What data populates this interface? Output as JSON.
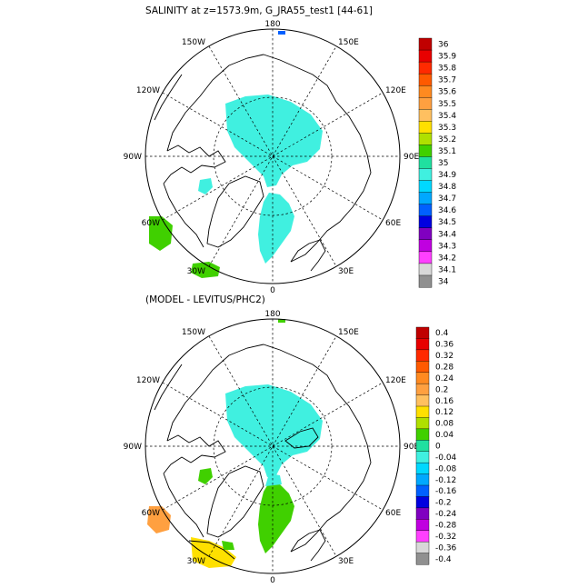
{
  "panels": [
    {
      "title": "SALINITY at z=1573.9m, G_JRA55_test1 [44-61]",
      "lon_labels": {
        "top": "180",
        "top_left": "150W",
        "top_right": "150E",
        "upper_left": "120W",
        "upper_right": "120E",
        "left": "90W",
        "right": "90E",
        "lower_left": "60W",
        "lower_right": "60E",
        "bottom_left": "30W",
        "bottom_right": "30E",
        "bottom": "0"
      },
      "colorbar": {
        "labels": [
          "36",
          "35.9",
          "35.8",
          "35.7",
          "35.6",
          "35.5",
          "35.4",
          "35.3",
          "35.2",
          "35.1",
          "35",
          "34.9",
          "34.8",
          "34.7",
          "34.6",
          "34.5",
          "34.4",
          "34.3",
          "34.2",
          "34.1",
          "34"
        ],
        "colors": [
          "#c00000",
          "#e80000",
          "#ff2a00",
          "#ff5a00",
          "#ff8a20",
          "#ffa040",
          "#ffc060",
          "#ffe000",
          "#b0e000",
          "#40d000",
          "#20e0a0",
          "#40f0e0",
          "#00d8ff",
          "#00a8ff",
          "#0060ff",
          "#0000e0",
          "#8000c0",
          "#c000e0",
          "#ff40ff",
          "#d8d8d8",
          "#909090"
        ]
      }
    },
    {
      "title": "(MODEL - LEVITUS/PHC2)",
      "lon_labels": {
        "top": "180",
        "top_left": "150W",
        "top_right": "150E",
        "upper_left": "120W",
        "upper_right": "120E",
        "left": "90W",
        "right": "90E",
        "lower_left": "60W",
        "lower_right": "60E",
        "bottom_left": "30W",
        "bottom_right": "30E",
        "bottom": "0"
      },
      "colorbar": {
        "labels": [
          "0.4",
          "0.36",
          "0.32",
          "0.28",
          "0.24",
          "0.2",
          "0.16",
          "0.12",
          "0.08",
          "0.04",
          "0",
          "-0.04",
          "-0.08",
          "-0.12",
          "-0.16",
          "-0.2",
          "-0.24",
          "-0.28",
          "-0.32",
          "-0.36",
          "-0.4"
        ],
        "colors": [
          "#c00000",
          "#e80000",
          "#ff2a00",
          "#ff5a00",
          "#ff8a20",
          "#ffa040",
          "#ffc060",
          "#ffe000",
          "#b0e000",
          "#40d000",
          "#20e0a0",
          "#40f0e0",
          "#00d8ff",
          "#00a8ff",
          "#0060ff",
          "#0000e0",
          "#8000c0",
          "#c000e0",
          "#ff40ff",
          "#d8d8d8",
          "#909090"
        ]
      }
    }
  ]
}
